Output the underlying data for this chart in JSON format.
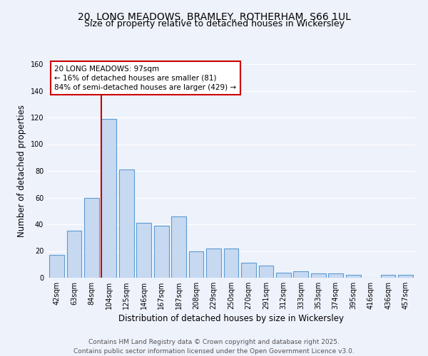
{
  "title1": "20, LONG MEADOWS, BRAMLEY, ROTHERHAM, S66 1UL",
  "title2": "Size of property relative to detached houses in Wickersley",
  "xlabel": "Distribution of detached houses by size in Wickersley",
  "ylabel": "Number of detached properties",
  "categories": [
    "42sqm",
    "63sqm",
    "84sqm",
    "104sqm",
    "125sqm",
    "146sqm",
    "167sqm",
    "187sqm",
    "208sqm",
    "229sqm",
    "250sqm",
    "270sqm",
    "291sqm",
    "312sqm",
    "333sqm",
    "353sqm",
    "374sqm",
    "395sqm",
    "416sqm",
    "436sqm",
    "457sqm"
  ],
  "values": [
    17,
    35,
    60,
    119,
    81,
    41,
    39,
    46,
    20,
    22,
    22,
    11,
    9,
    4,
    5,
    3,
    3,
    2,
    0,
    2,
    2
  ],
  "bar_color": "#c6d9f1",
  "bar_edge_color": "#5b9bd5",
  "ylim": [
    0,
    160
  ],
  "yticks": [
    0,
    20,
    40,
    60,
    80,
    100,
    120,
    140,
    160
  ],
  "vline_x_index": 3,
  "vline_color": "#cc0000",
  "annotation_title": "20 LONG MEADOWS: 97sqm",
  "annotation_line1": "← 16% of detached houses are smaller (81)",
  "annotation_line2": "84% of semi-detached houses are larger (429) →",
  "annotation_box_color": "#ffffff",
  "annotation_box_edge": "#cc0000",
  "background_color": "#eef2fb",
  "grid_color": "#ffffff",
  "footer1": "Contains HM Land Registry data © Crown copyright and database right 2025.",
  "footer2": "Contains public sector information licensed under the Open Government Licence v3.0.",
  "title_fontsize": 10,
  "subtitle_fontsize": 9,
  "axis_label_fontsize": 8.5,
  "tick_fontsize": 7,
  "footer_fontsize": 6.5,
  "annotation_fontsize": 7.5
}
